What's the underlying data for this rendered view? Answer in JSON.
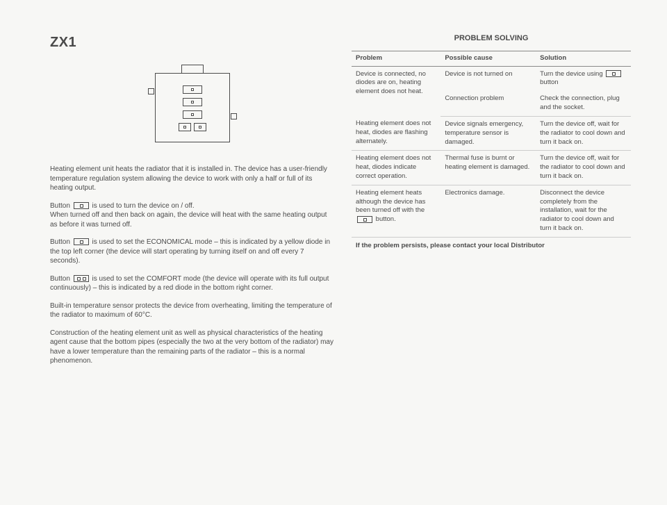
{
  "title": "ZX1",
  "left": {
    "p1": "Heating element unit heats the radiator that it is installed in. The device has a user-friendly temperature regulation system allowing the device to work with only a half or full of its heating output.",
    "p2a": "Button",
    "p2b": "is used to turn the device on / off.",
    "p3": "When turned off and then back on again, the device will heat with the same heating output as before it was turned off.",
    "p4a": "Button",
    "p4b": "is used to set the ECONOMICAL mode – this is indicated by a yellow diode in the top left corner (the device will start operating by turning itself on and off every 7 seconds).",
    "p5a": "Button",
    "p5b": "is used to set the COMFORT mode (the device will operate with its full output continuously) – this is indicated by a red diode in the bottom right corner.",
    "p6": "Built-in temperature sensor protects the device from overheating, limiting the temperature of the radiator to maximum of 60°C.",
    "p7": "Construction of the heating element unit as well as physical characteristics of the heating agent cause that the bottom pipes (especially the two at the very bottom of the radiator) may have a lower temperature than the remaining parts of the radiator – this is a normal phenomenon."
  },
  "right": {
    "heading": "PROBLEM SOLVING",
    "h1": "Problem",
    "h2": "Possible cause",
    "h3": "Solution",
    "r1c1": "Device is connected, no diodes are on, heating element does not heat.",
    "r1c2a": "Device is not turned on",
    "r1c3a1": "Turn the device using",
    "r1c3a2": "button",
    "r1c2b": "Connection problem",
    "r1c3b": "Check the connection, plug and the socket.",
    "r2c1": "Heating element does not heat, diodes are flashing alternately.",
    "r2c2": "Device signals emergency, temperature sensor is damaged.",
    "r2c3": "Turn the device off, wait for the radiator to cool down and turn it back on.",
    "r3c1": "Heating element does not heat, diodes indicate correct operation.",
    "r3c2": "Thermal fuse is burnt or heating element is damaged.",
    "r3c3": "Turn the device off, wait for the radiator to cool down and turn it back on.",
    "r4c1a": "Heating element heats although the device has been turned off with the",
    "r4c1b": "button.",
    "r4c2": "Electronics damage.",
    "r4c3": "Disconnect the device completely from the installation, wait for the radiator to cool down and turn it back on.",
    "footer": "If the problem persists, please contact your local Distributor"
  }
}
